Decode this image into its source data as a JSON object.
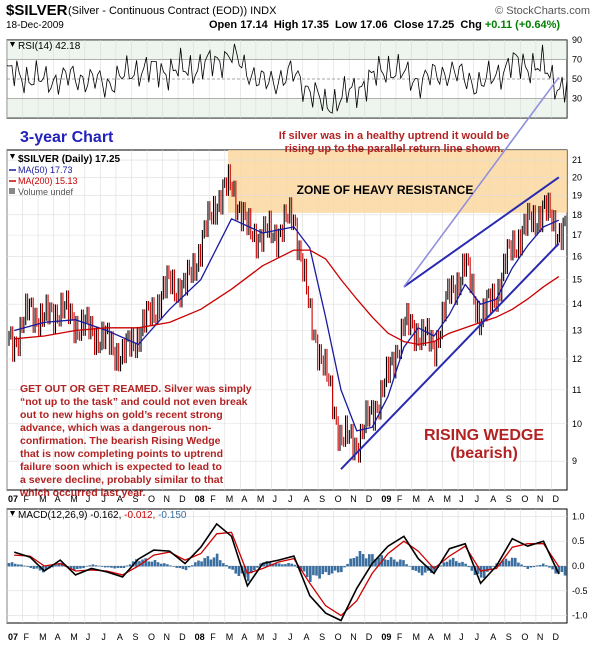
{
  "header": {
    "symbol": "$SILVER",
    "name": "(Silver - Continuous Contract (EOD))",
    "exchange": "INDX",
    "brand": "© StockCharts.com",
    "date": "18-Dec-2009",
    "open_label": "Open",
    "open": "17.14",
    "high_label": "High",
    "high": "17.35",
    "low_label": "Low",
    "low": "17.06",
    "close_label": "Close",
    "close": "17.25",
    "chg_label": "Chg",
    "chg": "+0.11 (+0.64%)"
  },
  "colors": {
    "price": "#000000",
    "up_bar": "#000000",
    "down_bar": "#cc0000",
    "ma50": "#1a1aa0",
    "ma200": "#cc0000",
    "wedge": "#2a2ab0",
    "return_line": "#8f8fdc",
    "resistance_zone": "#fad7a0",
    "annotation_red": "#b22222",
    "annotation_blue": "#2222bb",
    "macd": "#000000",
    "macd_signal": "#cc0000",
    "macd_hist": "#3a6fa0",
    "grid": "#dddddd"
  },
  "annotations": {
    "three_year": "3-year Chart",
    "return_line_note_1": "If silver was in a healthy uptrend it would be",
    "return_line_note_2": "rising up to the parallel return line shown.",
    "zone": "ZONE OF HEAVY RESISTANCE",
    "wedge_1": "RISING WEDGE",
    "wedge_2": "(bearish)",
    "commentary": [
      "GET OUT OR GET REAMED. Silver was simply",
      "“not up to the task” and could not even break",
      "out to new highs on gold’s recent strong",
      "advance, which was a dangerous non-",
      "confirmation. The bearish Rising Wedge",
      "that is now completing points to uptrend",
      "failure soon which is expected to lead to",
      "a severe decline, probably similar to that",
      "which occurred last year."
    ]
  },
  "chart_data": [
    {
      "type": "line",
      "panel": "RSI",
      "label": "RSI(14) 42.18",
      "indicator": "RSI(14)",
      "last_value": 42.18,
      "ylim": [
        10,
        90
      ],
      "y_ticks": [
        30,
        50,
        70,
        90
      ],
      "reference_lines": [
        30,
        50,
        70
      ],
      "x": [
        "2007-01",
        "2007-03",
        "2007-05",
        "2007-07",
        "2007-09",
        "2007-11",
        "2008-01",
        "2008-03",
        "2008-05",
        "2008-07",
        "2008-09",
        "2008-11",
        "2009-01",
        "2009-03",
        "2009-05",
        "2009-07",
        "2009-09",
        "2009-11",
        "2009-12"
      ],
      "values": [
        55,
        48,
        52,
        45,
        60,
        58,
        62,
        75,
        45,
        55,
        22,
        40,
        62,
        48,
        58,
        44,
        66,
        62,
        42
      ]
    },
    {
      "type": "line",
      "panel": "Price",
      "title": "$SILVER (Daily) 17.25",
      "legend": [
        "$SILVER (Daily) 17.25",
        "MA(50) 17.73",
        "MA(200) 15.13",
        "Volume undef"
      ],
      "y_scale": "log",
      "ylim": [
        8.3,
        21.6
      ],
      "y_ticks": [
        9,
        10,
        11,
        12,
        13,
        14,
        15,
        16,
        17,
        18,
        19,
        20,
        21
      ],
      "x_ticks": [
        "07",
        "F",
        "M",
        "A",
        "M",
        "J",
        "J",
        "A",
        "S",
        "O",
        "N",
        "D",
        "08",
        "F",
        "M",
        "A",
        "M",
        "J",
        "J",
        "A",
        "S",
        "O",
        "N",
        "D",
        "09",
        "F",
        "M",
        "A",
        "M",
        "J",
        "J",
        "A",
        "S",
        "O",
        "N",
        "D"
      ],
      "series": [
        {
          "name": "$SILVER (Daily) 17.25",
          "x": [
            "2007-01",
            "2007-02",
            "2007-03",
            "2007-04",
            "2007-05",
            "2007-06",
            "2007-07",
            "2007-08",
            "2007-09",
            "2007-10",
            "2007-11",
            "2007-12",
            "2008-01",
            "2008-02",
            "2008-03",
            "2008-04",
            "2008-05",
            "2008-06",
            "2008-07",
            "2008-08",
            "2008-09",
            "2008-10",
            "2008-11",
            "2008-12",
            "2009-01",
            "2009-02",
            "2009-03",
            "2009-04",
            "2009-05",
            "2009-06",
            "2009-07",
            "2009-08",
            "2009-09",
            "2009-10",
            "2009-11",
            "2009-12"
          ],
          "values": [
            12.6,
            13.8,
            13.4,
            13.9,
            13.3,
            13.0,
            12.6,
            12.1,
            12.9,
            13.8,
            14.9,
            14.6,
            16.5,
            18.8,
            19.6,
            17.2,
            17.0,
            17.2,
            18.0,
            13.5,
            11.5,
            9.6,
            9.5,
            10.3,
            11.4,
            13.2,
            13.0,
            12.4,
            14.4,
            15.6,
            13.4,
            14.5,
            16.5,
            17.5,
            18.3,
            17.25
          ]
        },
        {
          "name": "MA(50) 17.73",
          "x": [
            "2007-01",
            "2007-03",
            "2007-05",
            "2007-07",
            "2007-09",
            "2007-11",
            "2008-01",
            "2008-03",
            "2008-05",
            "2008-07",
            "2008-08",
            "2008-09",
            "2008-10",
            "2008-11",
            "2008-12",
            "2009-01",
            "2009-02",
            "2009-03",
            "2009-04",
            "2009-05",
            "2009-06",
            "2009-07",
            "2009-08",
            "2009-09",
            "2009-10",
            "2009-11",
            "2009-12"
          ],
          "values": [
            13.0,
            13.3,
            13.4,
            13.0,
            12.5,
            13.8,
            15.0,
            17.8,
            17.1,
            17.4,
            16.4,
            13.5,
            11.0,
            9.8,
            9.9,
            10.8,
            12.4,
            13.1,
            12.8,
            13.6,
            14.8,
            14.0,
            14.2,
            15.5,
            16.5,
            17.4,
            17.73
          ]
        },
        {
          "name": "MA(200) 15.13",
          "x": [
            "2007-01",
            "2007-03",
            "2007-05",
            "2007-07",
            "2007-09",
            "2007-11",
            "2008-01",
            "2008-03",
            "2008-05",
            "2008-07",
            "2008-08",
            "2008-09",
            "2008-10",
            "2008-11",
            "2008-12",
            "2009-01",
            "2009-02",
            "2009-03",
            "2009-04",
            "2009-05",
            "2009-06",
            "2009-07",
            "2009-08",
            "2009-09",
            "2009-10",
            "2009-11",
            "2009-12"
          ],
          "values": [
            12.7,
            12.8,
            13.0,
            13.1,
            13.1,
            13.3,
            13.8,
            14.6,
            15.6,
            16.3,
            16.3,
            15.9,
            15.0,
            14.2,
            13.5,
            12.9,
            12.6,
            12.5,
            12.6,
            12.9,
            13.1,
            13.3,
            13.5,
            13.8,
            14.2,
            14.7,
            15.13
          ]
        }
      ],
      "resistance_zone": {
        "low": 18.1,
        "high": 21.6
      },
      "trendlines": {
        "wedge_upper": [
          [
            "2009-02",
            14.7
          ],
          [
            "2009-12",
            20.0
          ]
        ],
        "wedge_lower": [
          [
            "2008-10",
            8.8
          ],
          [
            "2009-12",
            16.6
          ]
        ],
        "return_line": [
          [
            "2009-02",
            14.7
          ],
          [
            "2009-12",
            26.5
          ]
        ]
      }
    },
    {
      "type": "line",
      "panel": "MACD",
      "label": "MACD(12,26,9)",
      "last_values": {
        "macd": "-0.162",
        "signal": "-0.012",
        "histogram": "-0.150"
      },
      "ylim": [
        -1.15,
        1.15
      ],
      "y_ticks": [
        -1.0,
        -0.5,
        0.0,
        0.5,
        1.0
      ],
      "x_ticks": [
        "07",
        "F",
        "M",
        "A",
        "M",
        "J",
        "J",
        "A",
        "S",
        "O",
        "N",
        "D",
        "08",
        "F",
        "M",
        "A",
        "M",
        "J",
        "J",
        "A",
        "S",
        "O",
        "N",
        "D",
        "09",
        "F",
        "M",
        "A",
        "M",
        "J",
        "J",
        "A",
        "S",
        "O",
        "N",
        "D"
      ],
      "series": [
        {
          "name": "macd",
          "x": [
            "2007-01",
            "2007-02",
            "2007-03",
            "2007-04",
            "2007-05",
            "2007-06",
            "2007-07",
            "2007-08",
            "2007-09",
            "2007-10",
            "2007-11",
            "2007-12",
            "2008-01",
            "2008-02",
            "2008-03",
            "2008-04",
            "2008-05",
            "2008-06",
            "2008-07",
            "2008-08",
            "2008-09",
            "2008-10",
            "2008-11",
            "2008-12",
            "2009-01",
            "2009-02",
            "2009-03",
            "2009-04",
            "2009-05",
            "2009-06",
            "2009-07",
            "2009-08",
            "2009-09",
            "2009-10",
            "2009-11",
            "2009-12"
          ],
          "values": [
            0.28,
            0.18,
            -0.1,
            0.12,
            -0.18,
            -0.05,
            -0.12,
            -0.22,
            0.14,
            0.32,
            0.3,
            0.05,
            0.38,
            0.85,
            0.6,
            -0.4,
            0.05,
            0.12,
            0.2,
            -0.6,
            -0.95,
            -1.1,
            -0.45,
            0.05,
            0.4,
            0.6,
            0.15,
            -0.15,
            0.35,
            0.45,
            -0.35,
            0.0,
            0.55,
            0.4,
            0.5,
            -0.162
          ]
        },
        {
          "name": "signal",
          "x": [
            "2007-01",
            "2007-02",
            "2007-03",
            "2007-04",
            "2007-05",
            "2007-06",
            "2007-07",
            "2007-08",
            "2007-09",
            "2007-10",
            "2007-11",
            "2007-12",
            "2008-01",
            "2008-02",
            "2008-03",
            "2008-04",
            "2008-05",
            "2008-06",
            "2008-07",
            "2008-08",
            "2008-09",
            "2008-10",
            "2008-11",
            "2008-12",
            "2009-01",
            "2009-02",
            "2009-03",
            "2009-04",
            "2009-05",
            "2009-06",
            "2009-07",
            "2009-08",
            "2009-09",
            "2009-10",
            "2009-11",
            "2009-12"
          ],
          "values": [
            0.22,
            0.2,
            0.0,
            0.05,
            -0.1,
            -0.08,
            -0.1,
            -0.18,
            0.0,
            0.22,
            0.28,
            0.12,
            0.25,
            0.65,
            0.68,
            -0.15,
            -0.05,
            0.08,
            0.15,
            -0.35,
            -0.8,
            -1.0,
            -0.7,
            -0.15,
            0.25,
            0.5,
            0.3,
            -0.05,
            0.2,
            0.4,
            -0.1,
            -0.05,
            0.38,
            0.45,
            0.45,
            -0.012
          ]
        },
        {
          "name": "histogram",
          "type": "bar",
          "x": [
            "2007-01",
            "2007-02",
            "2007-03",
            "2007-04",
            "2007-05",
            "2007-06",
            "2007-07",
            "2007-08",
            "2007-09",
            "2007-10",
            "2007-11",
            "2007-12",
            "2008-01",
            "2008-02",
            "2008-03",
            "2008-04",
            "2008-05",
            "2008-06",
            "2008-07",
            "2008-08",
            "2008-09",
            "2008-10",
            "2008-11",
            "2008-12",
            "2009-01",
            "2009-02",
            "2009-03",
            "2009-04",
            "2009-05",
            "2009-06",
            "2009-07",
            "2009-08",
            "2009-09",
            "2009-10",
            "2009-11",
            "2009-12"
          ],
          "values": [
            0.06,
            -0.02,
            -0.1,
            0.07,
            -0.08,
            0.03,
            -0.02,
            -0.04,
            0.14,
            0.1,
            0.02,
            -0.07,
            0.13,
            0.2,
            -0.08,
            -0.25,
            0.1,
            0.04,
            0.05,
            -0.25,
            -0.15,
            -0.1,
            0.25,
            0.2,
            0.15,
            0.1,
            -0.15,
            -0.1,
            0.15,
            0.05,
            -0.25,
            0.05,
            0.17,
            -0.05,
            0.05,
            -0.15
          ]
        }
      ]
    }
  ]
}
